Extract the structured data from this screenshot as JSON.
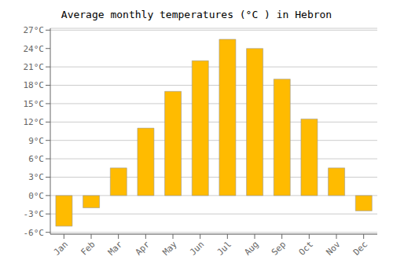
{
  "chart_data": {
    "type": "bar",
    "title": "Average monthly temperatures (°C ) in Hebron",
    "categories": [
      "Jan",
      "Feb",
      "Mar",
      "Apr",
      "May",
      "Jun",
      "Jul",
      "Aug",
      "Sep",
      "Oct",
      "Nov",
      "Dec"
    ],
    "values": [
      -5,
      -2,
      4.5,
      11,
      17,
      22,
      25.5,
      24,
      19,
      12.5,
      4.5,
      -2.5
    ],
    "color": "#FFBB00",
    "ylim": [
      -6.3,
      27.3
    ],
    "yticks": [
      {
        "value": -6,
        "label": "-6°C"
      },
      {
        "value": -3,
        "label": "-3°C"
      },
      {
        "value": 0,
        "label": "0°C"
      },
      {
        "value": 3,
        "label": "3°C"
      },
      {
        "value": 6,
        "label": "6°C"
      },
      {
        "value": 9,
        "label": "9°C"
      },
      {
        "value": 12,
        "label": "12°C"
      },
      {
        "value": 15,
        "label": "15°C"
      },
      {
        "value": 18,
        "label": "18°C"
      },
      {
        "value": 21,
        "label": "21°C"
      },
      {
        "value": 24,
        "label": "24°C"
      },
      {
        "value": 27,
        "label": "27°C"
      }
    ],
    "grid": true
  }
}
